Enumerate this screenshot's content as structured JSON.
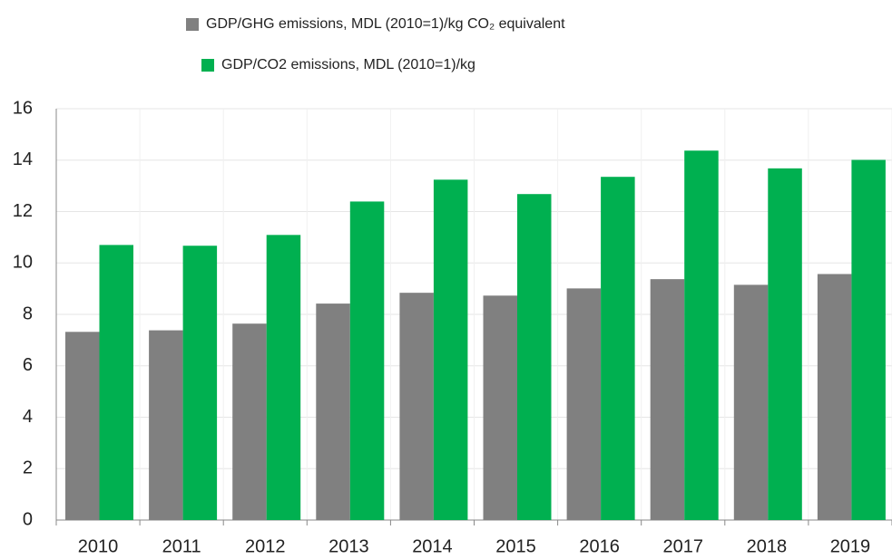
{
  "chart_data": {
    "type": "bar",
    "categories": [
      "2010",
      "2011",
      "2012",
      "2013",
      "2014",
      "2015",
      "2016",
      "2017",
      "2018",
      "2019"
    ],
    "series": [
      {
        "name": "GDP/GHG emissions, MDL (2010=1)/kg CO₂ equivalent",
        "color": "#808080",
        "values": [
          7.32,
          7.38,
          7.64,
          8.42,
          8.84,
          8.73,
          9.01,
          9.37,
          9.15,
          9.57
        ]
      },
      {
        "name": "GDP/CO2 emissions, MDL (2010=1)/kg",
        "color": "#00b050",
        "values": [
          10.7,
          10.67,
          11.09,
          12.39,
          13.24,
          12.68,
          13.35,
          14.37,
          13.68,
          14.01
        ]
      }
    ],
    "ylim": [
      0,
      16
    ],
    "yticks": [
      0,
      2,
      4,
      6,
      8,
      10,
      12,
      14,
      16
    ],
    "grid": true
  }
}
